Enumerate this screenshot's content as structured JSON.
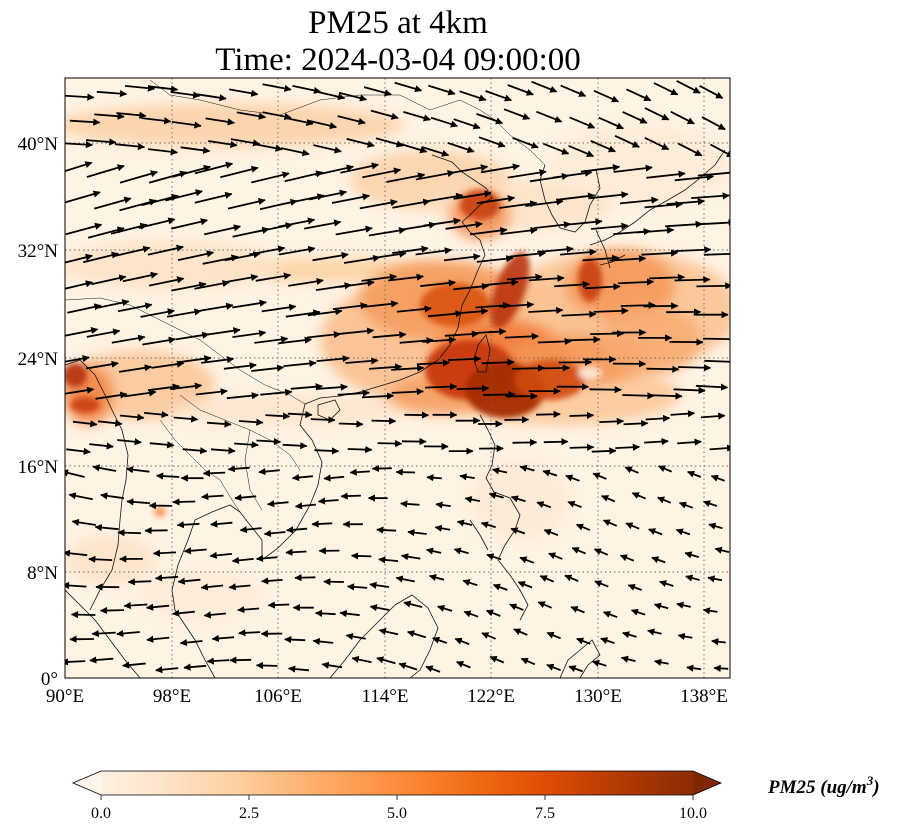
{
  "title": {
    "line1": "PM25 at 4km",
    "line2": "Time: 2024-03-04 09:00:00"
  },
  "map": {
    "lon_range": [
      90,
      140
    ],
    "lat_range": [
      0,
      44
    ],
    "lon_ticks": [
      "90°E",
      "98°E",
      "106°E",
      "114°E",
      "122°E",
      "130°E",
      "138°E"
    ],
    "lat_ticks": [
      "0°",
      "8°N",
      "16°N",
      "24°N",
      "32°N",
      "40°N"
    ],
    "lon_tick_values": [
      90,
      98,
      106,
      114,
      122,
      130,
      138
    ],
    "lat_tick_values": [
      0,
      8,
      16,
      24,
      32,
      40
    ],
    "gridlines": true,
    "field_variable": "PM25",
    "wind_vectors": true
  },
  "colorbar": {
    "min": 0.0,
    "max": 10.0,
    "ticks": [
      "0.0",
      "2.5",
      "5.0",
      "7.5",
      "10.0"
    ],
    "tick_values": [
      0,
      2.5,
      5,
      7.5,
      10
    ],
    "label_text": "PM25 (ug/m",
    "label_sup": "3",
    "label_close": ")",
    "extend": "both",
    "colormap": [
      "#fff5eb",
      "#fee6ce",
      "#fdd0a2",
      "#fdae6b",
      "#fd8d3c",
      "#f16913",
      "#d94801",
      "#a63603",
      "#7f2704"
    ]
  }
}
